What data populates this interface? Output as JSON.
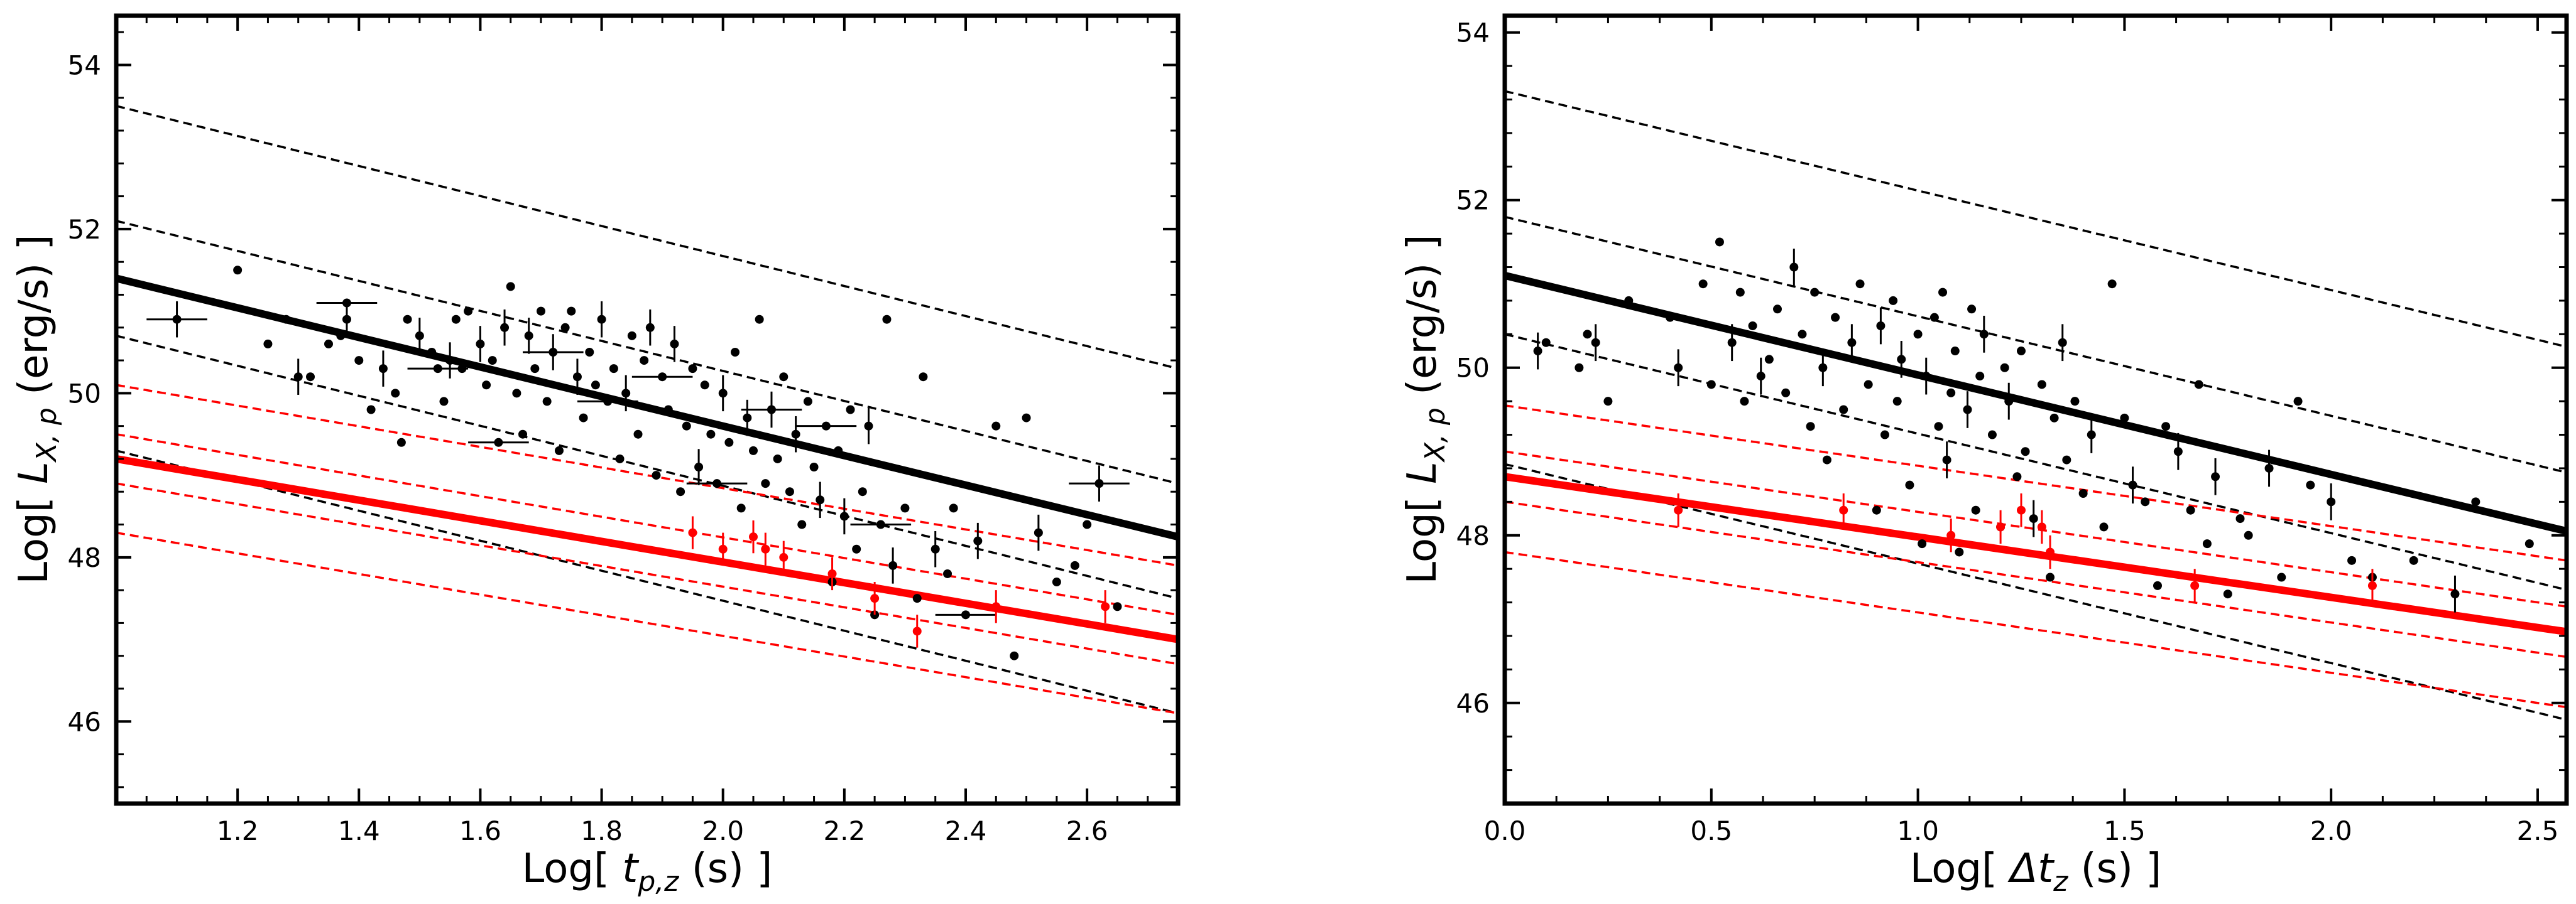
{
  "chart_data": [
    {
      "type": "scatter",
      "title": "",
      "xlabel": "Log[ t_p,z (s) ]",
      "xlabel_parts": {
        "pre": "Log[ ",
        "var": "t",
        "sub": "p,z",
        "post": " (s) ]"
      },
      "ylabel": "Log[ L_X,p (erg/s) ]",
      "ylabel_parts": {
        "pre": "Log[ ",
        "var": "L",
        "sub": "X, p",
        "post": " (erg/s) ]"
      },
      "xlim": [
        1.0,
        2.75
      ],
      "ylim": [
        45.0,
        54.6
      ],
      "xticks": [
        1.2,
        1.4,
        1.6,
        1.8,
        2.0,
        2.2,
        2.4,
        2.6
      ],
      "xtick_labels": [
        "1.2",
        "1.4",
        "1.6",
        "1.8",
        "2.0",
        "2.2",
        "2.4",
        "2.6"
      ],
      "yticks": [
        46,
        48,
        50,
        52,
        54
      ],
      "ytick_labels": [
        "46",
        "48",
        "50",
        "52",
        "54"
      ],
      "fit_lines": [
        {
          "name": "black-fit",
          "color": "#000000",
          "style": "solid",
          "y_at_xmin": 51.4,
          "y_at_xmax": 48.25
        },
        {
          "name": "black-upper-3sigma",
          "color": "#000000",
          "style": "dashed",
          "y_at_xmin": 53.5,
          "y_at_xmax": 50.3
        },
        {
          "name": "black-upper-2sigma",
          "color": "#000000",
          "style": "dashed",
          "y_at_xmin": 52.1,
          "y_at_xmax": 48.9
        },
        {
          "name": "black-upper-1sigma",
          "color": "#000000",
          "style": "dashed",
          "y_at_xmin": 50.7,
          "y_at_xmax": 47.5
        },
        {
          "name": "black-lower-dashed",
          "color": "#000000",
          "style": "dashed",
          "y_at_xmin": 49.3,
          "y_at_xmax": 46.1
        },
        {
          "name": "red-fit",
          "color": "#ff0000",
          "style": "solid",
          "y_at_xmin": 49.2,
          "y_at_xmax": 47.0
        },
        {
          "name": "red-upper-3sigma",
          "color": "#ff0000",
          "style": "dashed",
          "y_at_xmin": 50.1,
          "y_at_xmax": 47.9
        },
        {
          "name": "red-upper-1sigma",
          "color": "#ff0000",
          "style": "dashed",
          "y_at_xmin": 49.5,
          "y_at_xmax": 47.3
        },
        {
          "name": "red-lower-1sigma",
          "color": "#ff0000",
          "style": "dashed",
          "y_at_xmin": 48.9,
          "y_at_xmax": 46.7
        },
        {
          "name": "red-lower-3sigma",
          "color": "#ff0000",
          "style": "dashed",
          "y_at_xmin": 48.3,
          "y_at_xmax": 46.1
        }
      ],
      "black_points": [
        [
          1.1,
          50.9
        ],
        [
          1.2,
          51.5
        ],
        [
          1.25,
          50.6
        ],
        [
          1.28,
          50.9
        ],
        [
          1.3,
          50.2
        ],
        [
          1.32,
          50.2
        ],
        [
          1.35,
          50.6
        ],
        [
          1.37,
          50.7
        ],
        [
          1.38,
          50.9
        ],
        [
          1.38,
          51.1
        ],
        [
          1.4,
          50.4
        ],
        [
          1.42,
          49.8
        ],
        [
          1.44,
          50.3
        ],
        [
          1.46,
          50.0
        ],
        [
          1.47,
          49.4
        ],
        [
          1.48,
          50.9
        ],
        [
          1.5,
          50.7
        ],
        [
          1.52,
          50.5
        ],
        [
          1.53,
          50.3
        ],
        [
          1.54,
          49.9
        ],
        [
          1.55,
          50.4
        ],
        [
          1.56,
          50.9
        ],
        [
          1.57,
          50.3
        ],
        [
          1.58,
          51.0
        ],
        [
          1.6,
          50.6
        ],
        [
          1.61,
          50.1
        ],
        [
          1.62,
          50.4
        ],
        [
          1.63,
          49.4
        ],
        [
          1.64,
          50.8
        ],
        [
          1.65,
          51.3
        ],
        [
          1.66,
          50.0
        ],
        [
          1.67,
          49.5
        ],
        [
          1.68,
          50.7
        ],
        [
          1.69,
          50.3
        ],
        [
          1.7,
          51.0
        ],
        [
          1.71,
          49.9
        ],
        [
          1.72,
          50.5
        ],
        [
          1.73,
          49.3
        ],
        [
          1.74,
          50.8
        ],
        [
          1.75,
          51.0
        ],
        [
          1.76,
          50.2
        ],
        [
          1.77,
          49.7
        ],
        [
          1.78,
          50.5
        ],
        [
          1.79,
          50.1
        ],
        [
          1.8,
          50.9
        ],
        [
          1.81,
          49.9
        ],
        [
          1.82,
          50.3
        ],
        [
          1.83,
          49.2
        ],
        [
          1.84,
          50.0
        ],
        [
          1.85,
          50.7
        ],
        [
          1.86,
          49.5
        ],
        [
          1.87,
          50.4
        ],
        [
          1.88,
          50.8
        ],
        [
          1.89,
          49.0
        ],
        [
          1.9,
          50.2
        ],
        [
          1.91,
          49.8
        ],
        [
          1.92,
          50.6
        ],
        [
          1.93,
          48.8
        ],
        [
          1.94,
          49.6
        ],
        [
          1.95,
          50.3
        ],
        [
          1.96,
          49.1
        ],
        [
          1.97,
          50.1
        ],
        [
          1.98,
          49.5
        ],
        [
          1.99,
          48.9
        ],
        [
          2.0,
          50.0
        ],
        [
          2.01,
          49.4
        ],
        [
          2.02,
          50.5
        ],
        [
          2.03,
          48.6
        ],
        [
          2.04,
          49.7
        ],
        [
          2.05,
          49.3
        ],
        [
          2.06,
          50.9
        ],
        [
          2.07,
          48.9
        ],
        [
          2.08,
          49.8
        ],
        [
          2.09,
          49.2
        ],
        [
          2.1,
          50.2
        ],
        [
          2.11,
          48.8
        ],
        [
          2.12,
          49.5
        ],
        [
          2.13,
          48.4
        ],
        [
          2.14,
          49.9
        ],
        [
          2.15,
          49.1
        ],
        [
          2.16,
          48.7
        ],
        [
          2.17,
          49.6
        ],
        [
          2.18,
          47.7
        ],
        [
          2.19,
          49.3
        ],
        [
          2.2,
          48.5
        ],
        [
          2.21,
          49.8
        ],
        [
          2.22,
          48.1
        ],
        [
          2.23,
          48.8
        ],
        [
          2.24,
          49.6
        ],
        [
          2.25,
          47.3
        ],
        [
          2.26,
          48.4
        ],
        [
          2.27,
          50.9
        ],
        [
          2.28,
          47.9
        ],
        [
          2.3,
          48.6
        ],
        [
          2.32,
          47.5
        ],
        [
          2.33,
          50.2
        ],
        [
          2.35,
          48.1
        ],
        [
          2.37,
          47.8
        ],
        [
          2.38,
          48.6
        ],
        [
          2.4,
          47.3
        ],
        [
          2.42,
          48.2
        ],
        [
          2.45,
          49.6
        ],
        [
          2.48,
          46.8
        ],
        [
          2.5,
          49.7
        ],
        [
          2.52,
          48.3
        ],
        [
          2.55,
          47.7
        ],
        [
          2.58,
          47.9
        ],
        [
          2.6,
          48.4
        ],
        [
          2.62,
          48.9
        ],
        [
          2.65,
          47.4
        ]
      ],
      "red_points": [
        [
          1.95,
          48.3
        ],
        [
          2.0,
          48.1
        ],
        [
          2.05,
          48.25
        ],
        [
          2.07,
          48.1
        ],
        [
          2.1,
          48.0
        ],
        [
          2.18,
          47.8
        ],
        [
          2.25,
          47.5
        ],
        [
          2.32,
          47.1
        ],
        [
          2.45,
          47.4
        ],
        [
          2.63,
          47.4
        ]
      ]
    },
    {
      "type": "scatter",
      "title": "",
      "xlabel": "Log[ Δt_z (s) ]",
      "xlabel_parts": {
        "pre": "Log[ ",
        "var": "Δt",
        "sub": "z",
        "post": " (s) ]"
      },
      "ylabel": "Log[ L_X,p (erg/s) ]",
      "ylabel_parts": {
        "pre": "Log[ ",
        "var": "L",
        "sub": "X, p",
        "post": " (erg/s) ]"
      },
      "xlim": [
        0.0,
        2.57
      ],
      "ylim": [
        44.8,
        54.2
      ],
      "xticks": [
        0.0,
        0.5,
        1.0,
        1.5,
        2.0,
        2.5
      ],
      "xtick_labels": [
        "0.0",
        "0.5",
        "1.0",
        "1.5",
        "2.0",
        "2.5"
      ],
      "yticks": [
        46,
        48,
        50,
        52,
        54
      ],
      "ytick_labels": [
        "46",
        "48",
        "50",
        "52",
        "54"
      ],
      "fit_lines": [
        {
          "name": "black-fit",
          "color": "#000000",
          "style": "solid",
          "y_at_xmin": 51.1,
          "y_at_xmax": 48.05
        },
        {
          "name": "black-upper-3sigma",
          "color": "#000000",
          "style": "dashed",
          "y_at_xmin": 53.3,
          "y_at_xmax": 50.25
        },
        {
          "name": "black-upper-2sigma",
          "color": "#000000",
          "style": "dashed",
          "y_at_xmin": 51.8,
          "y_at_xmax": 48.75
        },
        {
          "name": "black-upper-1sigma",
          "color": "#000000",
          "style": "dashed",
          "y_at_xmin": 50.4,
          "y_at_xmax": 47.35
        },
        {
          "name": "black-lower-dashed",
          "color": "#000000",
          "style": "dashed",
          "y_at_xmin": 48.85,
          "y_at_xmax": 45.8
        },
        {
          "name": "red-fit",
          "color": "#ff0000",
          "style": "solid",
          "y_at_xmin": 48.7,
          "y_at_xmax": 46.85
        },
        {
          "name": "red-upper-3sigma",
          "color": "#ff0000",
          "style": "dashed",
          "y_at_xmin": 49.55,
          "y_at_xmax": 47.7
        },
        {
          "name": "red-upper-1sigma",
          "color": "#ff0000",
          "style": "dashed",
          "y_at_xmin": 49.0,
          "y_at_xmax": 47.15
        },
        {
          "name": "red-lower-1sigma",
          "color": "#ff0000",
          "style": "dashed",
          "y_at_xmin": 48.4,
          "y_at_xmax": 46.55
        },
        {
          "name": "red-lower-3sigma",
          "color": "#ff0000",
          "style": "dashed",
          "y_at_xmin": 47.8,
          "y_at_xmax": 45.95
        }
      ],
      "black_points": [
        [
          0.08,
          50.2
        ],
        [
          0.1,
          50.3
        ],
        [
          0.18,
          50.0
        ],
        [
          0.2,
          50.4
        ],
        [
          0.22,
          50.3
        ],
        [
          0.25,
          49.6
        ],
        [
          0.3,
          50.8
        ],
        [
          0.4,
          50.6
        ],
        [
          0.42,
          50.0
        ],
        [
          0.48,
          51.0
        ],
        [
          0.5,
          49.8
        ],
        [
          0.52,
          51.5
        ],
        [
          0.55,
          50.3
        ],
        [
          0.57,
          50.9
        ],
        [
          0.58,
          49.6
        ],
        [
          0.6,
          50.5
        ],
        [
          0.62,
          49.9
        ],
        [
          0.64,
          50.1
        ],
        [
          0.66,
          50.7
        ],
        [
          0.68,
          49.7
        ],
        [
          0.7,
          51.2
        ],
        [
          0.72,
          50.4
        ],
        [
          0.74,
          49.3
        ],
        [
          0.75,
          50.9
        ],
        [
          0.77,
          50.0
        ],
        [
          0.78,
          48.9
        ],
        [
          0.8,
          50.6
        ],
        [
          0.82,
          49.5
        ],
        [
          0.84,
          50.3
        ],
        [
          0.86,
          51.0
        ],
        [
          0.88,
          49.8
        ],
        [
          0.9,
          48.3
        ],
        [
          0.91,
          50.5
        ],
        [
          0.92,
          49.2
        ],
        [
          0.94,
          50.8
        ],
        [
          0.95,
          49.6
        ],
        [
          0.96,
          50.1
        ],
        [
          0.98,
          48.6
        ],
        [
          1.0,
          50.4
        ],
        [
          1.01,
          47.9
        ],
        [
          1.02,
          49.9
        ],
        [
          1.04,
          50.6
        ],
        [
          1.05,
          49.3
        ],
        [
          1.06,
          50.9
        ],
        [
          1.07,
          48.9
        ],
        [
          1.08,
          49.7
        ],
        [
          1.09,
          50.2
        ],
        [
          1.1,
          47.8
        ],
        [
          1.12,
          49.5
        ],
        [
          1.13,
          50.7
        ],
        [
          1.14,
          48.3
        ],
        [
          1.15,
          49.9
        ],
        [
          1.16,
          50.4
        ],
        [
          1.18,
          49.2
        ],
        [
          1.2,
          48.1
        ],
        [
          1.21,
          50.0
        ],
        [
          1.22,
          49.6
        ],
        [
          1.24,
          48.7
        ],
        [
          1.25,
          50.2
        ],
        [
          1.26,
          49.0
        ],
        [
          1.28,
          48.2
        ],
        [
          1.3,
          49.8
        ],
        [
          1.32,
          47.5
        ],
        [
          1.33,
          49.4
        ],
        [
          1.35,
          50.3
        ],
        [
          1.36,
          48.9
        ],
        [
          1.38,
          49.6
        ],
        [
          1.4,
          48.5
        ],
        [
          1.42,
          49.2
        ],
        [
          1.45,
          48.1
        ],
        [
          1.47,
          51.0
        ],
        [
          1.5,
          49.4
        ],
        [
          1.52,
          48.6
        ],
        [
          1.55,
          48.4
        ],
        [
          1.58,
          47.4
        ],
        [
          1.6,
          49.3
        ],
        [
          1.63,
          49.0
        ],
        [
          1.66,
          48.3
        ],
        [
          1.68,
          49.8
        ],
        [
          1.7,
          47.9
        ],
        [
          1.72,
          48.7
        ],
        [
          1.75,
          47.3
        ],
        [
          1.78,
          48.2
        ],
        [
          1.8,
          48.0
        ],
        [
          1.85,
          48.8
        ],
        [
          1.88,
          47.5
        ],
        [
          1.92,
          49.6
        ],
        [
          1.95,
          48.6
        ],
        [
          2.0,
          48.4
        ],
        [
          2.05,
          47.7
        ],
        [
          2.1,
          47.5
        ],
        [
          2.2,
          47.7
        ],
        [
          2.3,
          47.3
        ],
        [
          2.35,
          48.4
        ],
        [
          2.48,
          47.9
        ]
      ],
      "red_points": [
        [
          0.42,
          48.3
        ],
        [
          0.82,
          48.3
        ],
        [
          1.08,
          48.0
        ],
        [
          1.2,
          48.1
        ],
        [
          1.25,
          48.3
        ],
        [
          1.3,
          48.1
        ],
        [
          1.32,
          47.8
        ],
        [
          1.67,
          47.4
        ],
        [
          2.1,
          47.4
        ]
      ]
    }
  ]
}
